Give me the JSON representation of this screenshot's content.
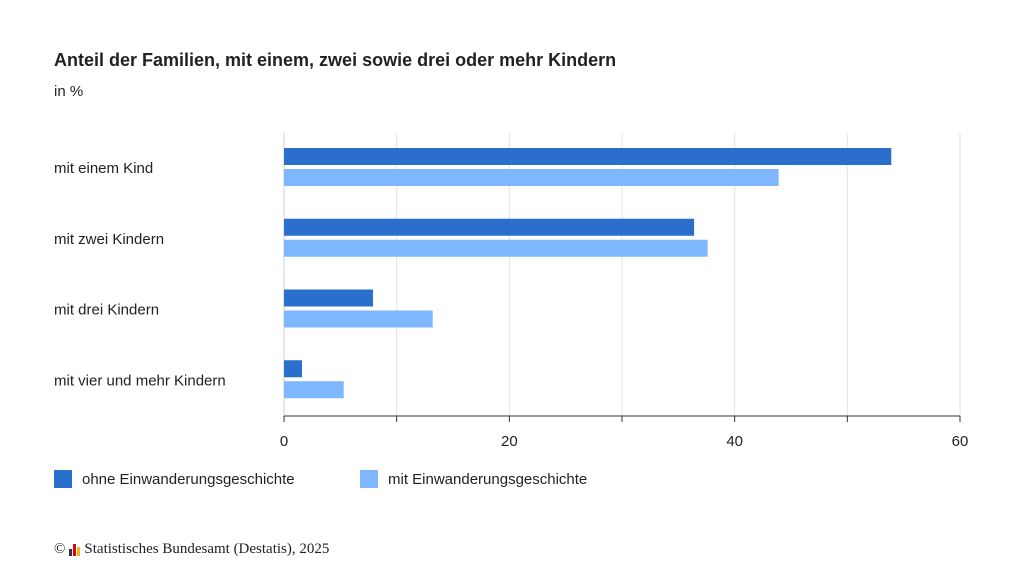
{
  "chart_data": {
    "type": "bar",
    "orientation": "horizontal",
    "title": "Anteil der Familien, mit einem, zwei sowie drei oder mehr Kindern",
    "subtitle": "in %",
    "categories": [
      "mit einem Kind",
      "mit zwei Kindern",
      "mit drei Kindern",
      "mit vier und mehr Kindern"
    ],
    "series": [
      {
        "name": "ohne Einwanderungsgeschichte",
        "color": "#2a6fcc",
        "values": [
          53.9,
          36.4,
          7.9,
          1.6
        ]
      },
      {
        "name": "mit Einwanderungsgeschichte",
        "color": "#7fb7ff",
        "values": [
          43.9,
          37.6,
          13.2,
          5.3
        ]
      }
    ],
    "xlim": [
      0,
      60
    ],
    "xticks": [
      "0",
      "20",
      "40",
      "60"
    ],
    "grid": true,
    "legend_position": "bottom-left"
  },
  "source": {
    "copyright": "©",
    "text": "Statistisches Bundesamt (Destatis), 2025",
    "logo_colors": [
      "#333333",
      "#e2001a",
      "#f5b800"
    ]
  }
}
